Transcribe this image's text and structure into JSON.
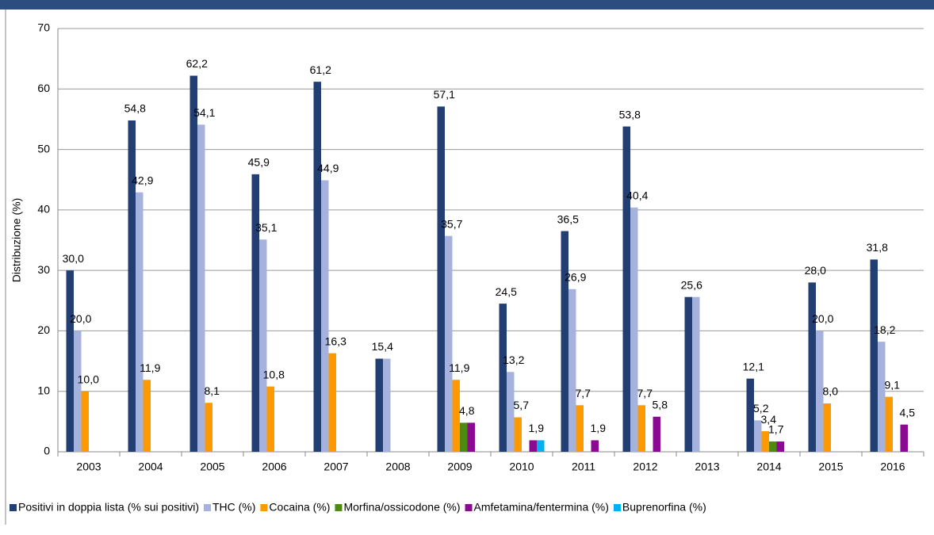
{
  "chart_data": {
    "type": "bar",
    "y_label": "Distribuzione (%)",
    "categories": [
      "2003",
      "2004",
      "2005",
      "2006",
      "2007",
      "2008",
      "2009",
      "2010",
      "2011",
      "2012",
      "2013",
      "2014",
      "2015",
      "2016"
    ],
    "ylim": [
      0,
      70
    ],
    "yticks": [
      0,
      10,
      20,
      30,
      40,
      50,
      60,
      70
    ],
    "grid": true,
    "series": [
      {
        "name": "Positivi in doppia lista (% sui positivi)",
        "color": "#233f72",
        "values": [
          30.0,
          54.8,
          62.2,
          45.9,
          61.2,
          15.4,
          57.1,
          24.5,
          36.5,
          53.8,
          25.6,
          12.1,
          28.0,
          31.8
        ],
        "value_labels": [
          "30,0",
          "54,8",
          "62,2",
          "45,9",
          "61,2",
          "15,4",
          "57,1",
          "24,5",
          "36,5",
          "53,8",
          "25,6",
          "12,1",
          "28,0",
          "31,8"
        ]
      },
      {
        "name": "THC (%)",
        "color": "#a6b2de",
        "values": [
          20.0,
          42.9,
          54.1,
          35.1,
          44.9,
          15.4,
          35.7,
          13.2,
          26.9,
          40.4,
          25.6,
          5.2,
          20.0,
          18.2
        ],
        "value_labels": [
          "20,0",
          "42,9",
          "54,1",
          "35,1",
          "44,9",
          null,
          "35,7",
          "13,2",
          "26,9",
          "40,4",
          null,
          "5,2",
          "20,0",
          "18,2"
        ]
      },
      {
        "name": "Cocaina (%)",
        "color": "#ff9900",
        "values": [
          10.0,
          11.9,
          8.1,
          10.8,
          16.3,
          null,
          11.9,
          5.7,
          7.7,
          7.7,
          null,
          3.4,
          8.0,
          9.1
        ],
        "value_labels": [
          "10,0",
          "11,9",
          "8,1",
          "10,8",
          "16,3",
          null,
          "11,9",
          "5,7",
          "7,7",
          "7,7",
          null,
          "3,4",
          "8,0",
          "9,1"
        ]
      },
      {
        "name": "Morfina/ossicodone (%)",
        "color": "#4f8a10",
        "values": [
          null,
          null,
          null,
          null,
          null,
          null,
          4.8,
          null,
          null,
          null,
          null,
          1.7,
          null,
          null
        ],
        "value_labels": [
          null,
          null,
          null,
          null,
          null,
          null,
          "4,8",
          null,
          null,
          null,
          null,
          "1,7",
          null,
          null
        ]
      },
      {
        "name": "Amfetamina/fentermina (%)",
        "color": "#8b0a92",
        "values": [
          null,
          null,
          null,
          null,
          null,
          null,
          4.8,
          1.9,
          1.9,
          5.8,
          null,
          1.7,
          null,
          4.5
        ],
        "value_labels": [
          null,
          null,
          null,
          null,
          null,
          null,
          null,
          "1,9",
          "1,9",
          "5,8",
          null,
          null,
          null,
          "4,5"
        ]
      },
      {
        "name": "Buprenorfina (%)",
        "color": "#00b0f0",
        "values": [
          null,
          null,
          null,
          null,
          null,
          null,
          null,
          1.9,
          null,
          null,
          null,
          null,
          null,
          null
        ],
        "value_labels": [
          null,
          null,
          null,
          null,
          null,
          null,
          null,
          null,
          null,
          null,
          null,
          null,
          null,
          null
        ]
      }
    ]
  }
}
